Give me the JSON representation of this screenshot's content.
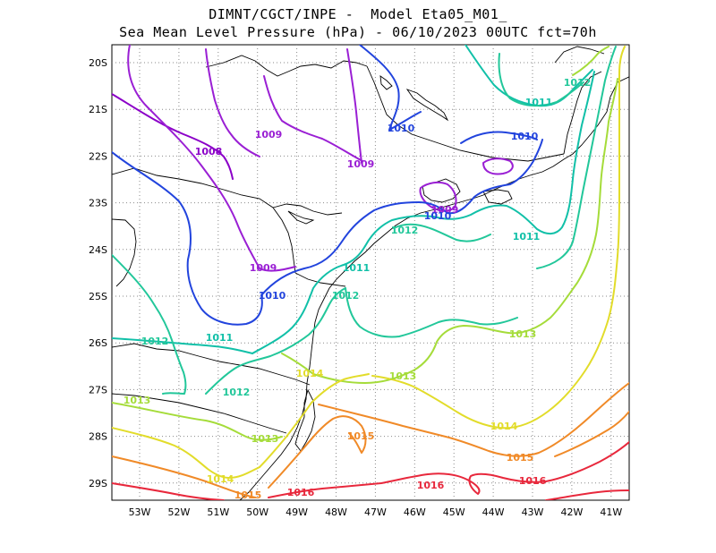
{
  "title_line1": "DIMNT/CGCT/INPE -  Model Eta05_M01_",
  "title_line2": "Sea Mean Level Pressure (hPa) - 06/10/2023 00UTC fct=70h",
  "lat_labels": [
    "20S",
    "21S",
    "22S",
    "23S",
    "24S",
    "25S",
    "26S",
    "27S",
    "28S",
    "29S"
  ],
  "lon_labels": [
    "53W",
    "52W",
    "51W",
    "50W",
    "49W",
    "48W",
    "47W",
    "46W",
    "45W",
    "44W",
    "43W",
    "42W",
    "41W"
  ],
  "isobar_colors": {
    "1008": "#8b00c8",
    "1009": "#9a1fd4",
    "1010": "#2244dd",
    "1011": "#11c0a8",
    "1012": "#22c79a",
    "1013": "#a5dc3a",
    "1014": "#e2dc2a",
    "1015": "#f08a28",
    "1016": "#e8283c"
  },
  "isobar_labels": [
    {
      "text": "1008",
      "level": "1008",
      "id": "l0"
    },
    {
      "text": "1009",
      "level": "1009",
      "id": "l1"
    },
    {
      "text": "1009",
      "level": "1009",
      "id": "l2"
    },
    {
      "text": "1009",
      "level": "1009",
      "id": "l3"
    },
    {
      "text": "1009",
      "level": "1009",
      "id": "l4"
    },
    {
      "text": "1010",
      "level": "1010",
      "id": "l5"
    },
    {
      "text": "1010",
      "level": "1010",
      "id": "l6"
    },
    {
      "text": "1010",
      "level": "1010",
      "id": "l7"
    },
    {
      "text": "1010",
      "level": "1010",
      "id": "l8"
    },
    {
      "text": "1011",
      "level": "1011",
      "id": "l9"
    },
    {
      "text": "1011",
      "level": "1011",
      "id": "l10"
    },
    {
      "text": "1011",
      "level": "1011",
      "id": "l11"
    },
    {
      "text": "1011",
      "level": "1011",
      "id": "l12"
    },
    {
      "text": "1012",
      "level": "1012",
      "id": "l13"
    },
    {
      "text": "1012",
      "level": "1012",
      "id": "l14"
    },
    {
      "text": "1012",
      "level": "1012",
      "id": "l15"
    },
    {
      "text": "1012",
      "level": "1012",
      "id": "l16"
    },
    {
      "text": "1012",
      "level": "1012",
      "id": "l17"
    },
    {
      "text": "1013",
      "level": "1013",
      "id": "l18"
    },
    {
      "text": "1013",
      "level": "1013",
      "id": "l19"
    },
    {
      "text": "1013",
      "level": "1013",
      "id": "l20"
    },
    {
      "text": "1013",
      "level": "1013",
      "id": "l21"
    },
    {
      "text": "1014",
      "level": "1014",
      "id": "l22"
    },
    {
      "text": "1014",
      "level": "1014",
      "id": "l23"
    },
    {
      "text": "1014",
      "level": "1014",
      "id": "l24"
    },
    {
      "text": "1015",
      "level": "1015",
      "id": "l25"
    },
    {
      "text": "1015",
      "level": "1015",
      "id": "l26"
    },
    {
      "text": "1015",
      "level": "1015",
      "id": "l27"
    },
    {
      "text": "1016",
      "level": "1016",
      "id": "l28"
    },
    {
      "text": "1016",
      "level": "1016",
      "id": "l29"
    },
    {
      "text": "1016",
      "level": "1016",
      "id": "l30"
    }
  ]
}
